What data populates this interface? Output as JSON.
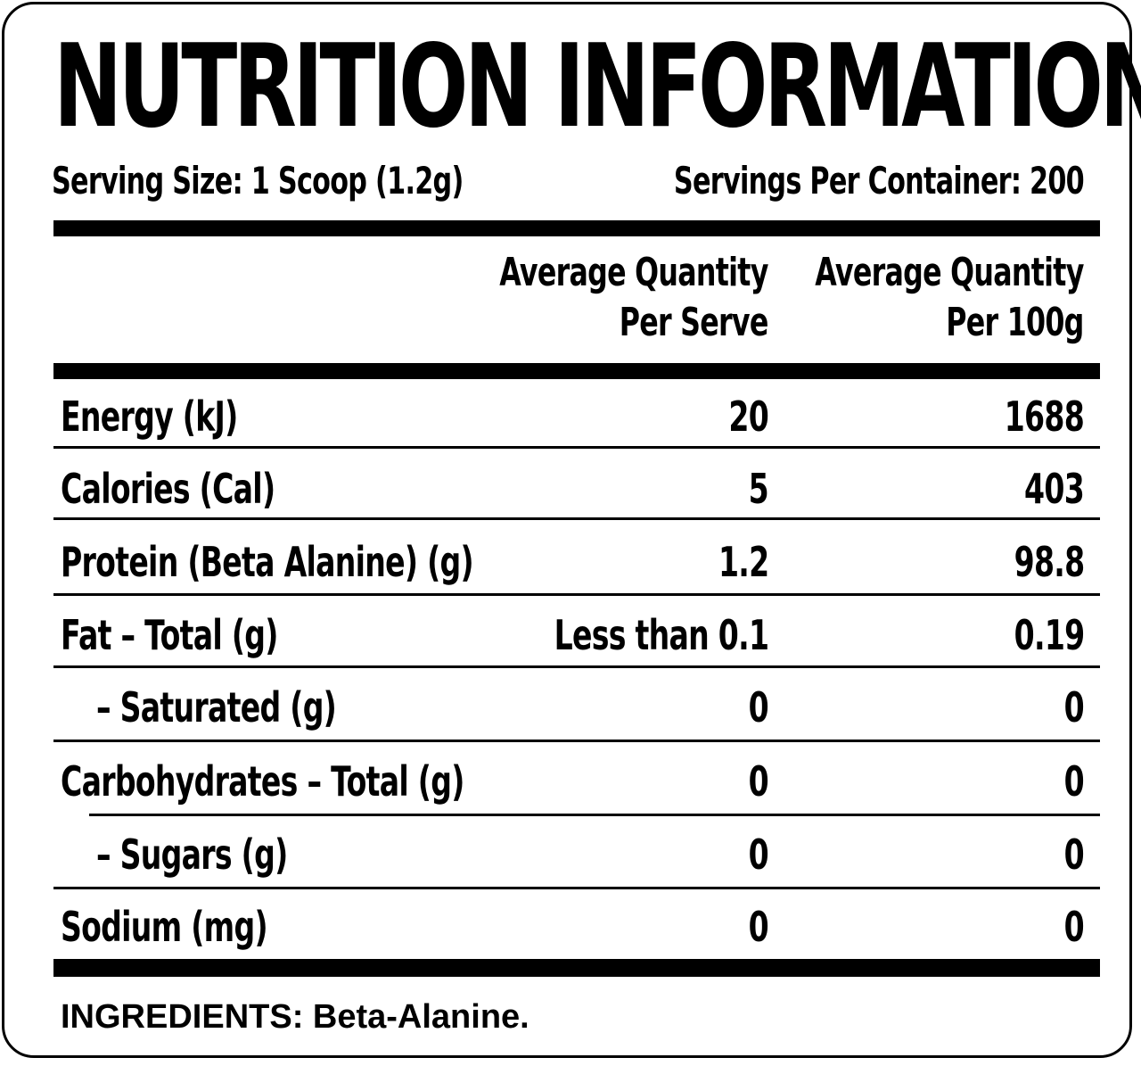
{
  "label": {
    "title": "NUTRITION INFORMATION",
    "serving_size": "Serving Size: 1 Scoop (1.2g)",
    "servings_per_container": "Servings Per Container: 200",
    "columns": {
      "per_serve_line1": "Average Quantity",
      "per_serve_line2": "Per Serve",
      "per_100g_line1": "Average Quantity",
      "per_100g_line2": "Per 100g"
    },
    "rows": [
      {
        "name": "Energy (kJ)",
        "per_serve": "20",
        "per_100g": "1688"
      },
      {
        "name": "Calories (Cal)",
        "per_serve": "5",
        "per_100g": "403"
      },
      {
        "name": "Protein (Beta Alanine) (g)",
        "per_serve": "1.2",
        "per_100g": "98.8"
      },
      {
        "name": "Fat – Total (g)",
        "per_serve": "Less than 0.1",
        "per_100g": "0.19"
      },
      {
        "name": "– Saturated (g)",
        "per_serve": "0",
        "per_100g": "0"
      },
      {
        "name": "Carbohydrates – Total (g)",
        "per_serve": "0",
        "per_100g": "0"
      },
      {
        "name": "– Sugars (g)",
        "per_serve": "0",
        "per_100g": "0"
      },
      {
        "name": "Sodium (mg)",
        "per_serve": "0",
        "per_100g": "0"
      }
    ],
    "ingredients": "INGREDIENTS: Beta-Alanine."
  },
  "colors": {
    "ink": "#000000",
    "background": "#ffffff"
  }
}
